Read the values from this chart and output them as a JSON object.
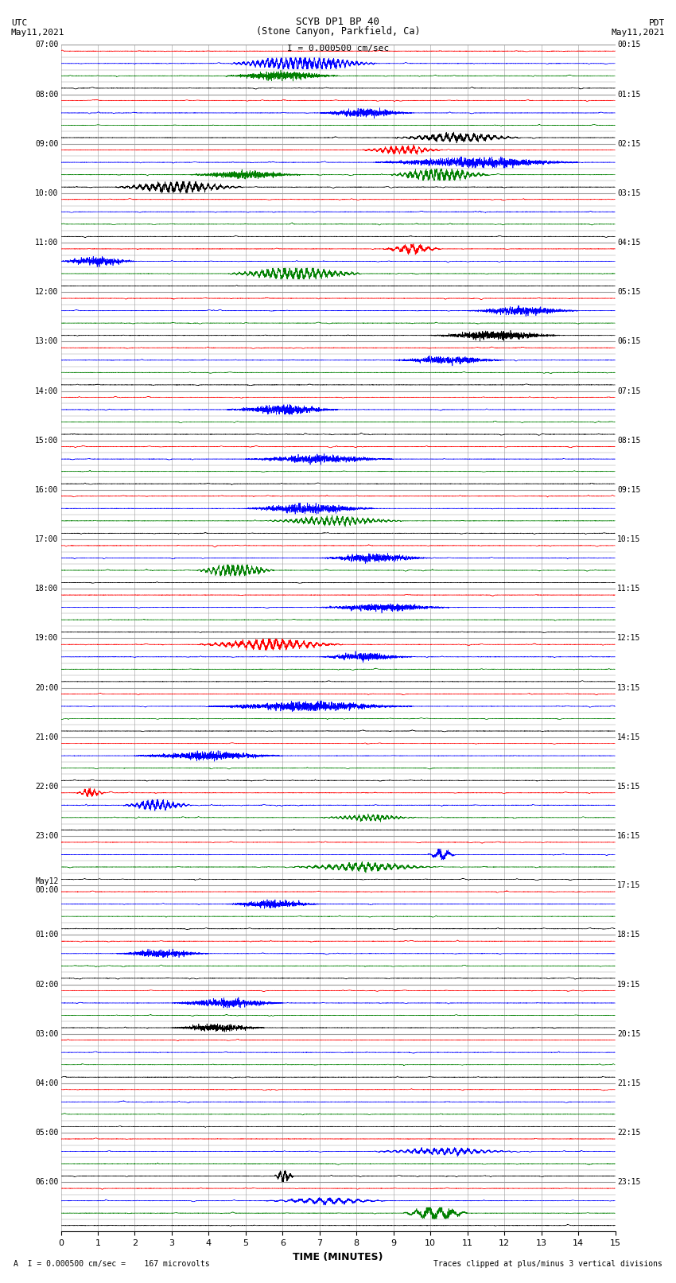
{
  "title_line1": "SCYB DP1 BP 40",
  "title_line2": "(Stone Canyon, Parkfield, Ca)",
  "scale_text": "I = 0.000500 cm/sec",
  "left_header_line1": "UTC",
  "left_header_line2": "May11,2021",
  "right_header_line1": "PDT",
  "right_header_line2": "May11,2021",
  "xlabel": "TIME (MINUTES)",
  "bottom_left_text": "A  I = 0.000500 cm/sec =    167 microvolts",
  "bottom_right_text": "Traces clipped at plus/minus 3 vertical divisions",
  "time_min": 0,
  "time_max": 15,
  "background_color": "#ffffff",
  "grid_color": "#999999",
  "colors": [
    "red",
    "blue",
    "green",
    "black"
  ],
  "left_labels_hours": [
    "07:00",
    "08:00",
    "09:00",
    "10:00",
    "11:00",
    "12:00",
    "13:00",
    "14:00",
    "15:00",
    "16:00",
    "17:00",
    "18:00",
    "19:00",
    "20:00",
    "21:00",
    "22:00",
    "23:00",
    "May12\n00:00",
    "01:00",
    "02:00",
    "03:00",
    "04:00",
    "05:00",
    "06:00"
  ],
  "right_labels_hours": [
    "00:15",
    "01:15",
    "02:15",
    "03:15",
    "04:15",
    "05:15",
    "06:15",
    "07:15",
    "08:15",
    "09:15",
    "10:15",
    "11:15",
    "12:15",
    "13:15",
    "14:15",
    "15:15",
    "16:15",
    "17:15",
    "18:15",
    "19:15",
    "20:15",
    "21:15",
    "22:15",
    "23:15"
  ],
  "rows_per_hour": 4,
  "num_hours": 24,
  "spike_amplitude": 0.25,
  "burst_amplitude": 0.35,
  "noise_baseline": 0.02,
  "clip_level": 0.45
}
